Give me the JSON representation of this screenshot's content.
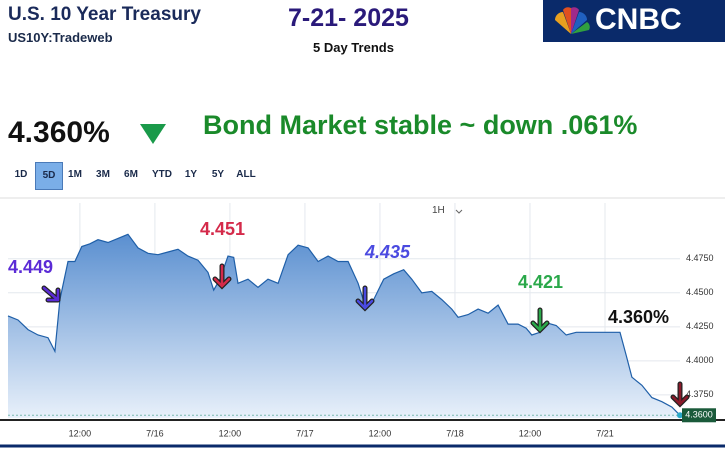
{
  "header": {
    "title": "U.S. 10 Year Treasury",
    "symbol": "US10Y:Tradeweb",
    "date": "7-21- 2025",
    "subtitle": "5 Day Trends",
    "logo": "CNBC",
    "price": "4.360%",
    "headline": "Bond Market stable ~ down .061%"
  },
  "ranges": [
    "1D",
    "5D",
    "1M",
    "3M",
    "6M",
    "YTD",
    "1Y",
    "5Y",
    "ALL"
  ],
  "interval": "1H",
  "chart_data": {
    "type": "area",
    "x": [
      0.5,
      2.1,
      3.7,
      5.3,
      6.9,
      8.0,
      8.8,
      10.1,
      11.2,
      12.3,
      13.6,
      14.9,
      16.5,
      18.1,
      19.7,
      21.3,
      22.9,
      24.5,
      26.1,
      27.7,
      29.3,
      30.9,
      32.5,
      33.4,
      34.4,
      35.7,
      36.6,
      37.3,
      38.9,
      40.5,
      42.1,
      43.7,
      45.3,
      46.9,
      48.5,
      50.1,
      51.7,
      53.3,
      54.9,
      56.5,
      57.8,
      59.0,
      60.6,
      62.2,
      63.8,
      65.1,
      66.7,
      68.3,
      69.9,
      71.5,
      72.5,
      74.1,
      75.7,
      77.3,
      78.9,
      80.5,
      82.1,
      83.4,
      84.3,
      85.6,
      86.6,
      88.2,
      89.8,
      91.4,
      93.0,
      95.2,
      98.4,
      99.4,
      100.3,
      101.9,
      103.5,
      105.1,
      106.7,
      108.0
    ],
    "series": [
      {
        "name": "US10Y",
        "color": "#1f5fa8",
        "values": [
          4.433,
          4.43,
          4.423,
          4.419,
          4.417,
          4.407,
          4.445,
          4.473,
          4.473,
          4.484,
          4.486,
          4.489,
          4.487,
          4.49,
          4.493,
          4.483,
          4.479,
          4.478,
          4.48,
          4.482,
          4.477,
          4.474,
          4.465,
          4.452,
          4.46,
          4.477,
          4.476,
          4.457,
          4.46,
          4.454,
          4.46,
          4.457,
          4.478,
          4.485,
          4.483,
          4.473,
          4.477,
          4.473,
          4.473,
          4.457,
          4.438,
          4.445,
          4.46,
          4.464,
          4.467,
          4.46,
          4.45,
          4.451,
          4.445,
          4.438,
          4.432,
          4.434,
          4.438,
          4.435,
          4.441,
          4.427,
          4.427,
          4.424,
          4.419,
          4.421,
          4.428,
          4.426,
          4.419,
          4.421,
          4.421,
          4.421,
          4.421,
          4.404,
          4.388,
          4.382,
          4.373,
          4.37,
          4.366,
          4.36
        ]
      }
    ],
    "xlim": [
      0.5,
      108.0
    ],
    "xticks": [
      {
        "value": 12,
        "label": "12:00"
      },
      {
        "value": 24,
        "label": "7/16"
      },
      {
        "value": 36,
        "label": "12:00"
      },
      {
        "value": 48,
        "label": "7/17"
      },
      {
        "value": 60,
        "label": "12:00"
      },
      {
        "value": 72,
        "label": "7/18"
      },
      {
        "value": 84,
        "label": "12:00"
      },
      {
        "value": 96,
        "label": "7/21"
      }
    ],
    "ylim": [
      4.358,
      4.516
    ],
    "yticks": [
      {
        "value": 4.375,
        "label": "4.3750"
      },
      {
        "value": 4.4,
        "label": "4.4000"
      },
      {
        "value": 4.425,
        "label": "4.4250"
      },
      {
        "value": 4.45,
        "label": "4.4500"
      },
      {
        "value": 4.475,
        "label": "4.4750"
      }
    ],
    "last_label": "4.3600",
    "annotations": [
      {
        "text": "4.449",
        "color": "#5b2bd6"
      },
      {
        "text": "4.451",
        "color": "#d42a4a"
      },
      {
        "text": "4.435",
        "color": "#4a4ae0"
      },
      {
        "text": "4.421",
        "color": "#2aa84a"
      },
      {
        "text": "4.360%",
        "color": "#111111"
      }
    ]
  }
}
